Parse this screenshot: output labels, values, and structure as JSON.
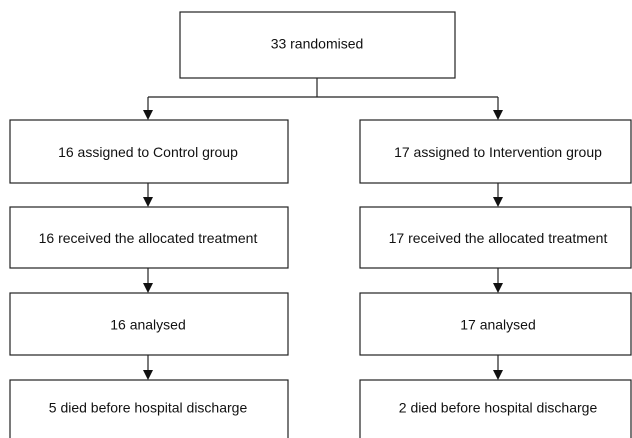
{
  "nodes": [
    {
      "label": "33 randomised"
    },
    {
      "label": "16 assigned to Control group"
    },
    {
      "label": "16 received the allocated treatment"
    },
    {
      "label": "16 analysed"
    },
    {
      "label": "5 died before hospital discharge"
    },
    {
      "label": "17 assigned to Intervention group"
    },
    {
      "label": "17 received the allocated treatment"
    },
    {
      "label": "17 analysed"
    },
    {
      "label": "2 died before hospital discharge"
    }
  ]
}
